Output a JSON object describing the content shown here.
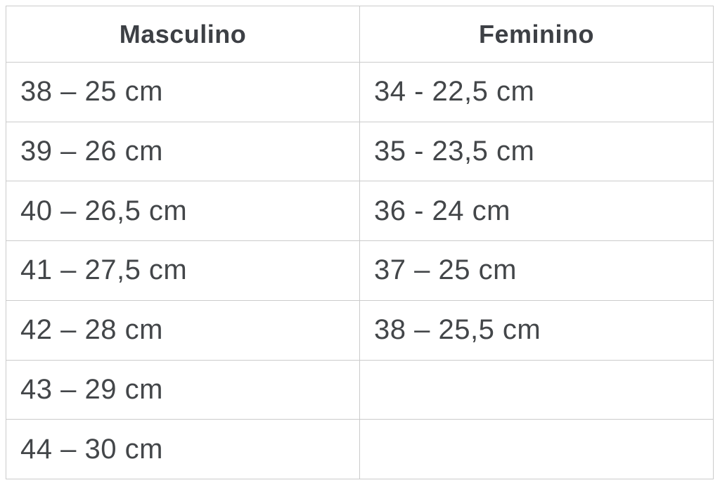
{
  "chart_data": {
    "type": "table",
    "title": "",
    "columns": [
      "Masculino",
      "Feminino"
    ],
    "rows": [
      [
        "38 – 25 cm",
        "34 - 22,5 cm"
      ],
      [
        "39 – 26 cm",
        "35 - 23,5 cm"
      ],
      [
        "40 – 26,5 cm",
        "36 - 24 cm"
      ],
      [
        "41 – 27,5 cm",
        "37 – 25 cm"
      ],
      [
        "42 – 28 cm",
        "38 – 25,5 cm"
      ],
      [
        "43 – 29 cm",
        ""
      ],
      [
        "44 – 30 cm",
        ""
      ]
    ]
  },
  "table": {
    "headers": {
      "masculino": "Masculino",
      "feminino": "Feminino"
    },
    "rows": [
      {
        "masculino": "38 – 25 cm",
        "feminino": "34 - 22,5 cm"
      },
      {
        "masculino": "39 – 26 cm",
        "feminino": "35 - 23,5 cm"
      },
      {
        "masculino": "40 – 26,5 cm",
        "feminino": "36 - 24 cm"
      },
      {
        "masculino": "41 – 27,5 cm",
        "feminino": "37 – 25 cm"
      },
      {
        "masculino": "42 – 28 cm",
        "feminino": "38 – 25,5 cm"
      },
      {
        "masculino": "43 – 29 cm",
        "feminino": ""
      },
      {
        "masculino": "44 – 30 cm",
        "feminino": ""
      }
    ],
    "colors": {
      "text": "#434649",
      "header_text": "#3d4045",
      "border": "#cbcbcb",
      "background": "#ffffff"
    }
  }
}
